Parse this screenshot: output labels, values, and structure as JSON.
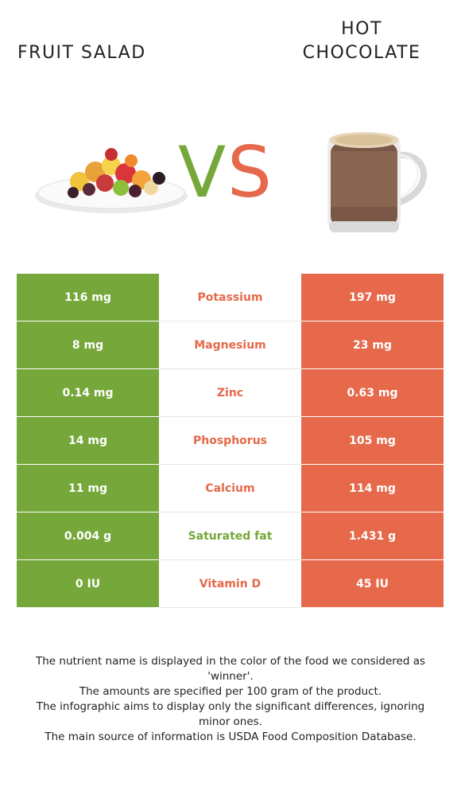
{
  "titles": {
    "left": [
      "FRUIT SALAD"
    ],
    "right": [
      "HOT",
      "CHOCOLATE"
    ]
  },
  "vs": {
    "v": "V",
    "s": "S"
  },
  "colors": {
    "left": "#76a73a",
    "right": "#e5694a"
  },
  "images": {
    "left": "fruit-salad-plate",
    "right": "hot-chocolate-mug"
  },
  "rows": [
    {
      "left": "116 mg",
      "nutrient": "Potassium",
      "right": "197 mg",
      "winner": "right"
    },
    {
      "left": "8 mg",
      "nutrient": "Magnesium",
      "right": "23 mg",
      "winner": "right"
    },
    {
      "left": "0.14 mg",
      "nutrient": "Zinc",
      "right": "0.63 mg",
      "winner": "right"
    },
    {
      "left": "14 mg",
      "nutrient": "Phosphorus",
      "right": "105 mg",
      "winner": "right"
    },
    {
      "left": "11 mg",
      "nutrient": "Calcium",
      "right": "114 mg",
      "winner": "right"
    },
    {
      "left": "0.004 g",
      "nutrient": "Saturated fat",
      "right": "1.431 g",
      "winner": "left"
    },
    {
      "left": "0 IU",
      "nutrient": "Vitamin D",
      "right": "45 IU",
      "winner": "right"
    }
  ],
  "footer": [
    "The nutrient name is displayed in the color of the food we considered as 'winner'.",
    "The amounts are specified per 100 gram of the product.",
    "The infographic aims to display only the significant differences, ignoring minor ones.",
    "The main source of information is USDA Food Composition Database."
  ]
}
